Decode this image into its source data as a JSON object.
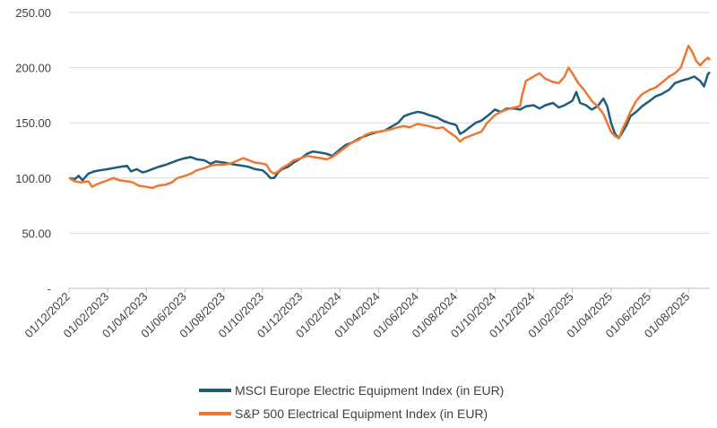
{
  "chart_data": {
    "type": "line",
    "title": "",
    "xlabel": "",
    "ylabel": "",
    "ylim": [
      0,
      250
    ],
    "y_ticks": [
      {
        "value": 0,
        "label": "-"
      },
      {
        "value": 50,
        "label": "50.00"
      },
      {
        "value": 100,
        "label": "100.00"
      },
      {
        "value": 150,
        "label": "150.00"
      },
      {
        "value": 200,
        "label": "200.00"
      },
      {
        "value": 250,
        "label": "250.00"
      }
    ],
    "x_range_months": [
      0,
      33.1
    ],
    "x_ticks": [
      {
        "month": 0,
        "label": "01/12/2022"
      },
      {
        "month": 2,
        "label": "01/02/2023"
      },
      {
        "month": 4,
        "label": "01/04/2023"
      },
      {
        "month": 6,
        "label": "01/06/2023"
      },
      {
        "month": 8,
        "label": "01/08/2023"
      },
      {
        "month": 10,
        "label": "01/10/2023"
      },
      {
        "month": 12,
        "label": "01/12/2023"
      },
      {
        "month": 14,
        "label": "01/02/2024"
      },
      {
        "month": 16,
        "label": "01/04/2024"
      },
      {
        "month": 18,
        "label": "01/06/2024"
      },
      {
        "month": 20,
        "label": "01/08/2024"
      },
      {
        "month": 22,
        "label": "01/10/2024"
      },
      {
        "month": 24,
        "label": "01/12/2024"
      },
      {
        "month": 26,
        "label": "01/02/2025"
      },
      {
        "month": 28,
        "label": "01/04/2025"
      },
      {
        "month": 30,
        "label": "01/06/2025"
      },
      {
        "month": 32,
        "label": "01/08/2025"
      }
    ],
    "grid": true,
    "legend_position": "bottom",
    "series": [
      {
        "name": "MSCI Europe Electric Equipment Index (in EUR)",
        "color": "#1f5c7a",
        "points": [
          [
            0,
            100
          ],
          [
            0.3,
            99
          ],
          [
            0.5,
            102
          ],
          [
            0.7,
            98
          ],
          [
            1,
            104
          ],
          [
            1.3,
            106
          ],
          [
            1.6,
            107
          ],
          [
            2,
            108
          ],
          [
            2.3,
            109
          ],
          [
            2.6,
            110
          ],
          [
            3,
            111
          ],
          [
            3.2,
            106
          ],
          [
            3.5,
            108
          ],
          [
            3.8,
            105
          ],
          [
            4,
            106
          ],
          [
            4.3,
            108
          ],
          [
            4.6,
            110
          ],
          [
            5,
            112
          ],
          [
            5.3,
            114
          ],
          [
            5.6,
            116
          ],
          [
            6,
            118
          ],
          [
            6.3,
            119
          ],
          [
            6.6,
            117
          ],
          [
            7,
            116
          ],
          [
            7.3,
            113
          ],
          [
            7.6,
            115
          ],
          [
            8,
            114
          ],
          [
            8.3,
            113
          ],
          [
            8.6,
            112
          ],
          [
            9,
            111
          ],
          [
            9.3,
            110
          ],
          [
            9.6,
            108
          ],
          [
            10,
            107
          ],
          [
            10.2,
            104
          ],
          [
            10.4,
            100
          ],
          [
            10.6,
            100
          ],
          [
            10.8,
            105
          ],
          [
            11,
            108
          ],
          [
            11.3,
            110
          ],
          [
            11.6,
            114
          ],
          [
            12,
            118
          ],
          [
            12.3,
            122
          ],
          [
            12.6,
            124
          ],
          [
            13,
            123
          ],
          [
            13.3,
            122
          ],
          [
            13.6,
            120
          ],
          [
            14,
            126
          ],
          [
            14.3,
            130
          ],
          [
            14.6,
            132
          ],
          [
            15,
            136
          ],
          [
            15.3,
            138
          ],
          [
            15.6,
            140
          ],
          [
            16,
            142
          ],
          [
            16.3,
            143
          ],
          [
            16.6,
            146
          ],
          [
            17,
            150
          ],
          [
            17.3,
            156
          ],
          [
            17.6,
            158
          ],
          [
            18,
            160
          ],
          [
            18.3,
            159
          ],
          [
            18.6,
            157
          ],
          [
            19,
            155
          ],
          [
            19.3,
            152
          ],
          [
            19.6,
            150
          ],
          [
            20,
            148
          ],
          [
            20.2,
            140
          ],
          [
            20.4,
            142
          ],
          [
            20.7,
            146
          ],
          [
            21,
            150
          ],
          [
            21.3,
            152
          ],
          [
            21.6,
            156
          ],
          [
            22,
            162
          ],
          [
            22.3,
            160
          ],
          [
            22.6,
            163
          ],
          [
            23,
            163
          ],
          [
            23.3,
            162
          ],
          [
            23.6,
            165
          ],
          [
            24,
            166
          ],
          [
            24.3,
            163
          ],
          [
            24.6,
            166
          ],
          [
            25,
            168
          ],
          [
            25.3,
            164
          ],
          [
            25.6,
            166
          ],
          [
            26,
            170
          ],
          [
            26.2,
            178
          ],
          [
            26.4,
            168
          ],
          [
            26.7,
            166
          ],
          [
            27,
            162
          ],
          [
            27.3,
            165
          ],
          [
            27.6,
            172
          ],
          [
            27.8,
            165
          ],
          [
            28,
            150
          ],
          [
            28.2,
            140
          ],
          [
            28.4,
            136
          ],
          [
            28.6,
            142
          ],
          [
            28.8,
            148
          ],
          [
            29,
            156
          ],
          [
            29.3,
            160
          ],
          [
            29.6,
            165
          ],
          [
            30,
            170
          ],
          [
            30.3,
            174
          ],
          [
            30.6,
            176
          ],
          [
            31,
            180
          ],
          [
            31.3,
            186
          ],
          [
            31.6,
            188
          ],
          [
            32,
            190
          ],
          [
            32.3,
            192
          ],
          [
            32.6,
            188
          ],
          [
            32.8,
            183
          ],
          [
            33,
            194
          ],
          [
            33.1,
            196
          ]
        ]
      },
      {
        "name": "S&P 500 Electrical Equipment Index (in EUR)",
        "color": "#ee7733",
        "points": [
          [
            0,
            100
          ],
          [
            0.3,
            97
          ],
          [
            0.6,
            96
          ],
          [
            1,
            97
          ],
          [
            1.2,
            92
          ],
          [
            1.4,
            94
          ],
          [
            1.7,
            96
          ],
          [
            2,
            98
          ],
          [
            2.3,
            100
          ],
          [
            2.6,
            98
          ],
          [
            3,
            97
          ],
          [
            3.3,
            96
          ],
          [
            3.6,
            93
          ],
          [
            4,
            92
          ],
          [
            4.3,
            91
          ],
          [
            4.6,
            93
          ],
          [
            5,
            94
          ],
          [
            5.3,
            96
          ],
          [
            5.6,
            100
          ],
          [
            6,
            102
          ],
          [
            6.3,
            104
          ],
          [
            6.6,
            107
          ],
          [
            7,
            109
          ],
          [
            7.3,
            111
          ],
          [
            7.6,
            112
          ],
          [
            8,
            112
          ],
          [
            8.3,
            113
          ],
          [
            8.6,
            115
          ],
          [
            9,
            118
          ],
          [
            9.3,
            116
          ],
          [
            9.6,
            114
          ],
          [
            10,
            113
          ],
          [
            10.2,
            112
          ],
          [
            10.4,
            106
          ],
          [
            10.6,
            104
          ],
          [
            10.8,
            106
          ],
          [
            11,
            109
          ],
          [
            11.3,
            112
          ],
          [
            11.6,
            116
          ],
          [
            12,
            118
          ],
          [
            12.3,
            120
          ],
          [
            12.6,
            119
          ],
          [
            13,
            118
          ],
          [
            13.3,
            117
          ],
          [
            13.6,
            119
          ],
          [
            14,
            124
          ],
          [
            14.3,
            128
          ],
          [
            14.6,
            132
          ],
          [
            15,
            135
          ],
          [
            15.3,
            139
          ],
          [
            15.6,
            141
          ],
          [
            16,
            142
          ],
          [
            16.3,
            143
          ],
          [
            16.6,
            144
          ],
          [
            17,
            146
          ],
          [
            17.3,
            147
          ],
          [
            17.6,
            146
          ],
          [
            18,
            149
          ],
          [
            18.3,
            148
          ],
          [
            18.6,
            147
          ],
          [
            19,
            145
          ],
          [
            19.3,
            146
          ],
          [
            19.6,
            142
          ],
          [
            20,
            137
          ],
          [
            20.2,
            133
          ],
          [
            20.4,
            136
          ],
          [
            20.7,
            138
          ],
          [
            21,
            140
          ],
          [
            21.3,
            142
          ],
          [
            21.6,
            150
          ],
          [
            22,
            157
          ],
          [
            22.3,
            160
          ],
          [
            22.6,
            162
          ],
          [
            23,
            164
          ],
          [
            23.3,
            165
          ],
          [
            23.4,
            175
          ],
          [
            23.6,
            188
          ],
          [
            24,
            192
          ],
          [
            24.3,
            195
          ],
          [
            24.6,
            190
          ],
          [
            25,
            187
          ],
          [
            25.3,
            186
          ],
          [
            25.6,
            192
          ],
          [
            25.8,
            200
          ],
          [
            26,
            195
          ],
          [
            26.3,
            186
          ],
          [
            26.6,
            180
          ],
          [
            27,
            170
          ],
          [
            27.3,
            165
          ],
          [
            27.6,
            158
          ],
          [
            27.8,
            150
          ],
          [
            28,
            142
          ],
          [
            28.2,
            138
          ],
          [
            28.4,
            136
          ],
          [
            28.6,
            145
          ],
          [
            28.8,
            152
          ],
          [
            29,
            160
          ],
          [
            29.3,
            170
          ],
          [
            29.6,
            176
          ],
          [
            30,
            180
          ],
          [
            30.3,
            182
          ],
          [
            30.6,
            186
          ],
          [
            31,
            192
          ],
          [
            31.3,
            195
          ],
          [
            31.6,
            200
          ],
          [
            31.8,
            210
          ],
          [
            32,
            220
          ],
          [
            32.2,
            214
          ],
          [
            32.4,
            206
          ],
          [
            32.6,
            202
          ],
          [
            32.8,
            206
          ],
          [
            33,
            209
          ],
          [
            33.1,
            207
          ]
        ]
      }
    ]
  }
}
